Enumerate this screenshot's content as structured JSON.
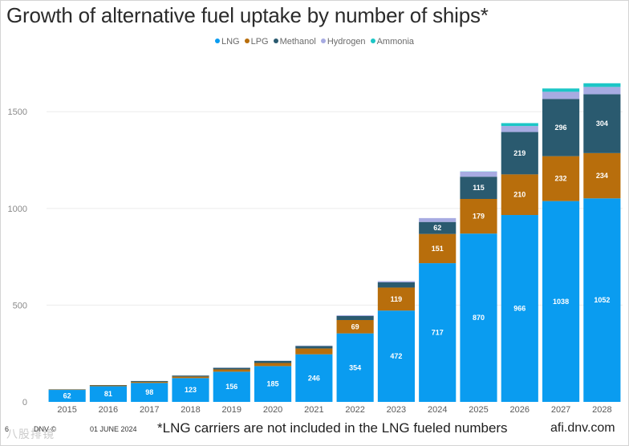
{
  "chart_data": {
    "type": "stacked-bar",
    "title": "Growth of alternative fuel uptake by number of ships*",
    "categories": [
      "2015",
      "2016",
      "2017",
      "2018",
      "2019",
      "2020",
      "2021",
      "2022",
      "2023",
      "2024",
      "2025",
      "2026",
      "2027",
      "2028"
    ],
    "ylim": [
      0,
      1700
    ],
    "yticks": [
      0,
      500,
      1000,
      1500
    ],
    "ytick_labels": [
      "0",
      "500",
      "1000",
      "1500"
    ],
    "legend_position": "top-center",
    "series": [
      {
        "name": "LNG",
        "color": "#0a9cf0",
        "values": [
          62,
          81,
          98,
          123,
          156,
          185,
          246,
          354,
          472,
          717,
          870,
          966,
          1038,
          1052
        ],
        "labels": [
          "62",
          "81",
          "98",
          "123",
          "156",
          "185",
          "246",
          "354",
          "472",
          "717",
          "870",
          "966",
          "1038",
          "1052"
        ]
      },
      {
        "name": "LPG",
        "color": "#b86e0c",
        "values": [
          2,
          4,
          6,
          8,
          12,
          16,
          30,
          69,
          119,
          151,
          179,
          210,
          232,
          234
        ],
        "labels": [
          "",
          "",
          "",
          "",
          "",
          "",
          "",
          "69",
          "119",
          "151",
          "179",
          "210",
          "232",
          "234"
        ]
      },
      {
        "name": "Methanol",
        "color": "#2a5a6f",
        "values": [
          1,
          2,
          4,
          5,
          8,
          11,
          13,
          21,
          27,
          62,
          115,
          219,
          296,
          304
        ],
        "labels": [
          "",
          "",
          "",
          "",
          "",
          "",
          "",
          "",
          "",
          "62",
          "115",
          "219",
          "296",
          "304"
        ]
      },
      {
        "name": "Hydrogen",
        "color": "#a7abe2",
        "values": [
          0,
          0,
          0,
          0,
          1,
          1,
          2,
          4,
          6,
          20,
          26,
          31,
          37,
          38
        ],
        "labels": [
          "",
          "",
          "",
          "",
          "",
          "",
          "",
          "",
          "",
          "",
          "",
          "",
          "",
          ""
        ]
      },
      {
        "name": "Ammonia",
        "color": "#1cc6c6",
        "values": [
          0,
          0,
          0,
          0,
          0,
          0,
          0,
          0,
          0,
          0,
          1,
          15,
          17,
          19
        ],
        "labels": [
          "",
          "",
          "",
          "",
          "",
          "",
          "",
          "",
          "",
          "",
          "",
          "",
          "",
          ""
        ]
      }
    ]
  },
  "footer": {
    "page": "6",
    "copyright": "DNV ©",
    "date": "01 JUNE 2024",
    "note": "*LNG carriers are not included in the LNG fueled numbers",
    "site": "afi.dnv.com"
  },
  "watermark": "八股排镜"
}
